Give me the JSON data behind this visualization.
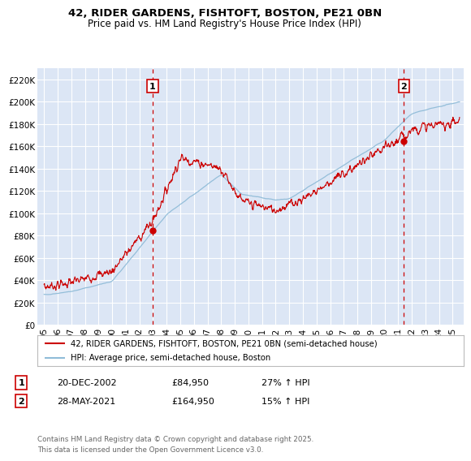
{
  "title_line1": "42, RIDER GARDENS, FISHTOFT, BOSTON, PE21 0BN",
  "title_line2": "Price paid vs. HM Land Registry's House Price Index (HPI)",
  "ylabel_ticks": [
    "£0",
    "£20K",
    "£40K",
    "£60K",
    "£80K",
    "£100K",
    "£120K",
    "£140K",
    "£160K",
    "£180K",
    "£200K",
    "£220K"
  ],
  "ytick_values": [
    0,
    20000,
    40000,
    60000,
    80000,
    100000,
    120000,
    140000,
    160000,
    180000,
    200000,
    220000
  ],
  "ylim": [
    0,
    230000
  ],
  "xlim_start": 1994.5,
  "xlim_end": 2025.8,
  "background_color": "#dce6f5",
  "red_line_color": "#cc0000",
  "blue_line_color": "#90bcd8",
  "marker1_x": 2002.97,
  "marker1_y": 84950,
  "marker2_x": 2021.41,
  "marker2_y": 164950,
  "vline1_x": 2002.97,
  "vline2_x": 2021.41,
  "legend_label1": "42, RIDER GARDENS, FISHTOFT, BOSTON, PE21 0BN (semi-detached house)",
  "legend_label2": "HPI: Average price, semi-detached house, Boston",
  "ann1_label": "1",
  "ann1_date": "20-DEC-2002",
  "ann1_price": "£84,950",
  "ann1_hpi": "27% ↑ HPI",
  "ann2_label": "2",
  "ann2_date": "28-MAY-2021",
  "ann2_price": "£164,950",
  "ann2_hpi": "15% ↑ HPI",
  "footer": "Contains HM Land Registry data © Crown copyright and database right 2025.\nThis data is licensed under the Open Government Licence v3.0.",
  "xtick_years": [
    1995,
    1996,
    1997,
    1998,
    1999,
    2000,
    2001,
    2002,
    2003,
    2004,
    2005,
    2006,
    2007,
    2008,
    2009,
    2010,
    2011,
    2012,
    2013,
    2014,
    2015,
    2016,
    2017,
    2018,
    2019,
    2020,
    2021,
    2022,
    2023,
    2024,
    2025
  ]
}
